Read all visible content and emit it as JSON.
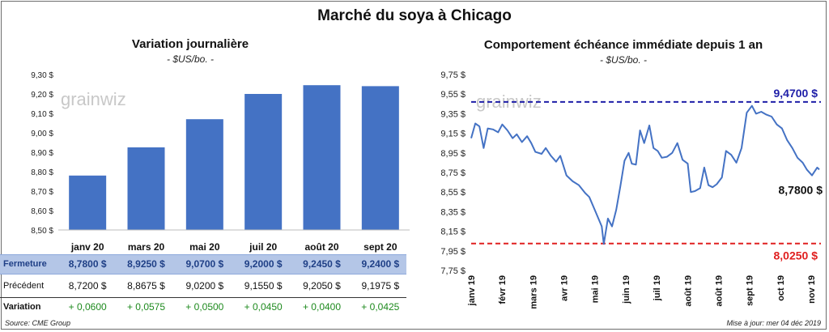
{
  "title": "Marché du soya à Chicago",
  "left": {
    "title": "Variation  journalière",
    "unit": "- $US/bo. -"
  },
  "right": {
    "title": "Comportement  échéance immédiate depuis 1 an",
    "unit": "- $US/bo. -"
  },
  "watermark": "grainwiz",
  "table": {
    "rows": [
      {
        "label": "Fermeture",
        "values": [
          "8,7800  $",
          "8,9250  $",
          "9,0700  $",
          "9,2000  $",
          "9,2450  $",
          "9,2400  $"
        ]
      },
      {
        "label": "Précédent",
        "values": [
          "8,7200  $",
          "8,8675  $",
          "9,0200  $",
          "9,1550  $",
          "9,2050  $",
          "9,1975  $"
        ]
      },
      {
        "label": "Variation",
        "values": [
          "+ 0,0600",
          "+ 0,0575",
          "+ 0,0500",
          "+ 0,0450",
          "+ 0,0400",
          "+ 0,0425"
        ]
      }
    ]
  },
  "footer": {
    "source": "Source: CME Group",
    "updated": "Mise à jour: mer 04 déc 2019"
  },
  "colors": {
    "bar": "#4472c4",
    "line": "#4472c4",
    "high_line": "#1f1fa8",
    "low_line": "#e02020",
    "closing_row_bg": "#b4c6e7",
    "variation_positive": "#1e8a1e"
  },
  "chart_data": [
    {
      "type": "bar",
      "categories": [
        "janv 20",
        "mars 20",
        "mai 20",
        "juil 20",
        "août 20",
        "sept 20"
      ],
      "values": [
        8.78,
        8.925,
        9.07,
        9.2,
        9.245,
        9.24
      ],
      "yticks": [
        "9,30 $",
        "9,20 $",
        "9,10 $",
        "9,00 $",
        "8,90 $",
        "8,80 $",
        "8,70 $",
        "8,60 $",
        "8,50 $"
      ],
      "ylim": [
        8.5,
        9.3
      ]
    },
    {
      "type": "line",
      "x_labels": [
        "janv 19",
        "févr 19",
        "mars 19",
        "avr 19",
        "mai 19",
        "juin 19",
        "juil 19",
        "août 19",
        "août 19",
        "sept 19",
        "oct 19",
        "nov 19"
      ],
      "yticks": [
        "9,75 $",
        "9,55 $",
        "9,35 $",
        "9,15 $",
        "8,95 $",
        "8,75 $",
        "8,55 $",
        "8,35 $",
        "8,15 $",
        "7,95 $",
        "7,75 $"
      ],
      "ylim": [
        7.75,
        9.75
      ],
      "x": [
        "2019-01-02",
        "2019-01-06",
        "2019-01-10",
        "2019-01-14",
        "2019-01-18",
        "2019-01-23",
        "2019-01-28",
        "2019-02-01",
        "2019-02-06",
        "2019-02-11",
        "2019-02-15",
        "2019-02-20",
        "2019-02-25",
        "2019-03-01",
        "2019-03-05",
        "2019-03-11",
        "2019-03-15",
        "2019-03-20",
        "2019-03-25",
        "2019-03-29",
        "2019-04-04",
        "2019-04-10",
        "2019-04-16",
        "2019-04-22",
        "2019-04-26",
        "2019-05-02",
        "2019-05-08",
        "2019-05-10",
        "2019-05-14",
        "2019-05-18",
        "2019-05-22",
        "2019-05-26",
        "2019-05-30",
        "2019-06-03",
        "2019-06-06",
        "2019-06-10",
        "2019-06-14",
        "2019-06-18",
        "2019-06-23",
        "2019-06-27",
        "2019-07-01",
        "2019-07-05",
        "2019-07-10",
        "2019-07-15",
        "2019-07-20",
        "2019-07-25",
        "2019-07-30",
        "2019-08-02",
        "2019-08-06",
        "2019-08-11",
        "2019-08-15",
        "2019-08-19",
        "2019-08-23",
        "2019-08-27",
        "2019-09-01",
        "2019-09-05",
        "2019-09-10",
        "2019-09-15",
        "2019-09-20",
        "2019-09-25",
        "2019-09-30",
        "2019-10-04",
        "2019-10-09",
        "2019-10-14",
        "2019-10-19",
        "2019-10-24",
        "2019-10-29",
        "2019-11-03",
        "2019-11-08",
        "2019-11-13",
        "2019-11-18",
        "2019-11-22",
        "2019-11-27",
        "2019-12-02",
        "2019-12-04"
      ],
      "y": [
        9.1,
        9.25,
        9.22,
        9.0,
        9.2,
        9.19,
        9.16,
        9.24,
        9.18,
        9.1,
        9.14,
        9.06,
        9.12,
        9.05,
        8.96,
        8.94,
        9.0,
        8.92,
        8.86,
        8.92,
        8.72,
        8.66,
        8.62,
        8.54,
        8.5,
        8.35,
        8.2,
        8.02,
        8.28,
        8.2,
        8.37,
        8.61,
        8.87,
        8.95,
        8.84,
        8.83,
        9.18,
        9.05,
        9.23,
        9.0,
        8.97,
        8.9,
        8.91,
        8.95,
        9.05,
        8.88,
        8.84,
        8.55,
        8.56,
        8.59,
        8.8,
        8.62,
        8.6,
        8.63,
        8.7,
        8.97,
        8.93,
        8.85,
        9.0,
        9.36,
        9.43,
        9.35,
        9.37,
        9.34,
        9.32,
        9.24,
        9.2,
        9.08,
        9.0,
        8.9,
        8.85,
        8.78,
        8.72,
        8.8,
        8.78
      ],
      "annotations": {
        "high": {
          "value": 9.47,
          "label": "9,4700  $"
        },
        "low": {
          "value": 8.025,
          "label": "8,0250  $"
        },
        "last": {
          "value": 8.78,
          "label": "8,7800 $"
        }
      }
    }
  ]
}
